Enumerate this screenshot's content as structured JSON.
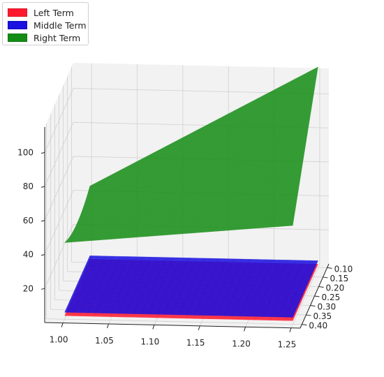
{
  "chart_data": {
    "type": "surface3d",
    "x_axis": {
      "ticks": [
        "1.00",
        "1.05",
        "1.10",
        "1.15",
        "1.20",
        "1.25"
      ],
      "range": [
        0.98,
        1.26
      ]
    },
    "y_axis": {
      "ticks": [
        "0.10",
        "0.15",
        "0.20",
        "0.25",
        "0.30",
        "0.35",
        "0.40"
      ],
      "range": [
        0.08,
        0.42
      ]
    },
    "z_axis": {
      "ticks": [
        "20",
        "40",
        "60",
        "80",
        "100"
      ],
      "range": [
        0,
        115
      ]
    },
    "series": [
      {
        "name": "Left Term",
        "color": "#ff1a2e",
        "surface": "flat",
        "z": 2
      },
      {
        "name": "Middle Term",
        "color": "#1a10e0",
        "surface": "flat",
        "z": 4
      },
      {
        "name": "Right Term",
        "color": "#148c14",
        "surface": "curved",
        "corner_values": {
          "x_min_y_min": 45,
          "x_max_y_min": 118,
          "x_min_y_max": 45,
          "x_max_y_max": 58
        },
        "min_value": 40
      }
    ],
    "legend_position": "top-left",
    "grid": true
  }
}
